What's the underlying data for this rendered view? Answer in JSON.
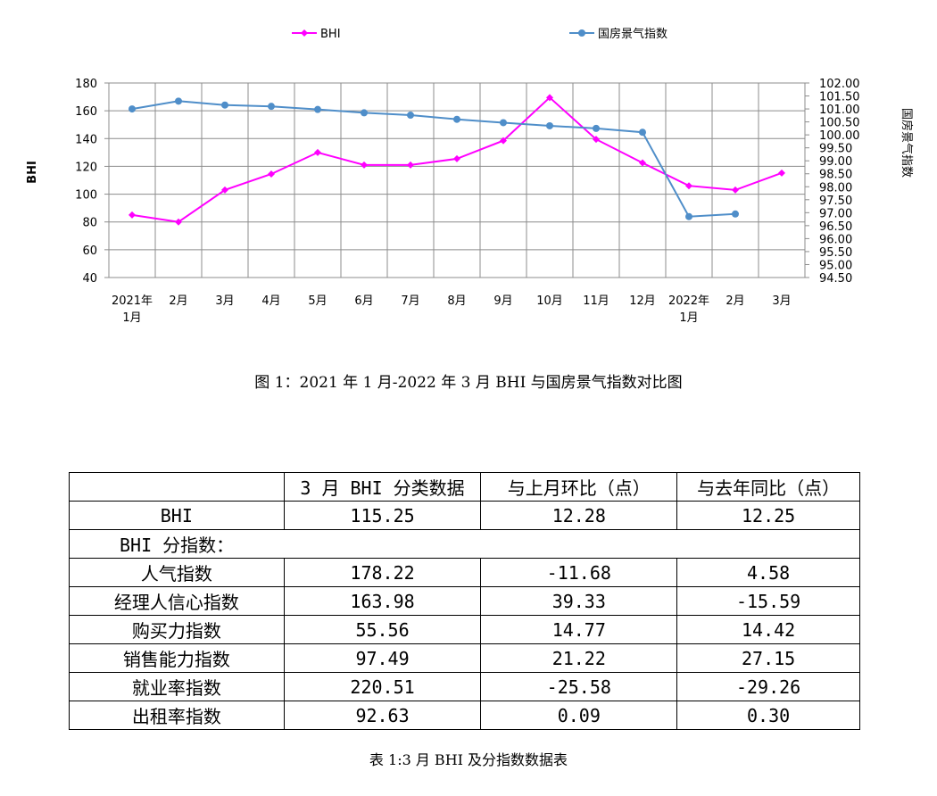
{
  "chart_data": {
    "type": "line",
    "categories": [
      "2021年\n1月",
      "2月",
      "3月",
      "4月",
      "5月",
      "6月",
      "7月",
      "8月",
      "9月",
      "10月",
      "11月",
      "12月",
      "2022年\n1月",
      "2月",
      "3月"
    ],
    "series": [
      {
        "name": "BHI",
        "axis": "left",
        "color": "#ff00ff",
        "marker": "diamond",
        "values": [
          85,
          80,
          103,
          114.5,
          130,
          121,
          121,
          125.5,
          138.5,
          169.5,
          139.5,
          122.5,
          106,
          103,
          115.25
        ]
      },
      {
        "name": "国房景气指数",
        "axis": "right",
        "color": "#4f8ec9",
        "marker": "circle",
        "values": [
          101.0,
          101.3,
          101.15,
          101.1,
          100.98,
          100.85,
          100.76,
          100.6,
          100.47,
          100.35,
          100.25,
          100.1,
          96.85,
          96.95,
          null
        ]
      }
    ],
    "ylabel": "BHI",
    "y2label": "国房景气指数",
    "ylim": [
      40,
      180
    ],
    "yticks": [
      40,
      60,
      80,
      100,
      120,
      140,
      160,
      180
    ],
    "y2lim": [
      94.5,
      102.0
    ],
    "y2ticks": [
      "94.50",
      "95.00",
      "95.50",
      "96.00",
      "96.50",
      "97.00",
      "97.50",
      "98.00",
      "98.50",
      "99.00",
      "99.50",
      "100.00",
      "100.50",
      "101.00",
      "101.50",
      "102.00"
    ],
    "grid": true,
    "legend": "top"
  },
  "figure_caption": "图 1：2021 年 1 月-2022 年 3 月 BHI 与国房景气指数对比图",
  "table": {
    "headers": [
      "",
      "3 月 BHI 分类数据",
      "与上月环比（点）",
      "与去年同比（点）"
    ],
    "bhi_row": [
      "BHI",
      "115.25",
      "12.28",
      "12.25"
    ],
    "section_label": "BHI 分指数：",
    "rows": [
      [
        "人气指数",
        "178.22",
        "-11.68",
        "4.58"
      ],
      [
        "经理人信心指数",
        "163.98",
        "39.33",
        "-15.59"
      ],
      [
        "购买力指数",
        "55.56",
        "14.77",
        "14.42"
      ],
      [
        "销售能力指数",
        "97.49",
        "21.22",
        "27.15"
      ],
      [
        "就业率指数",
        "220.51",
        "-25.58",
        "-29.26"
      ],
      [
        "出租率指数",
        "92.63",
        "0.09",
        "0.30"
      ]
    ]
  },
  "table_caption": "表 1:3 月 BHI 及分指数数据表"
}
